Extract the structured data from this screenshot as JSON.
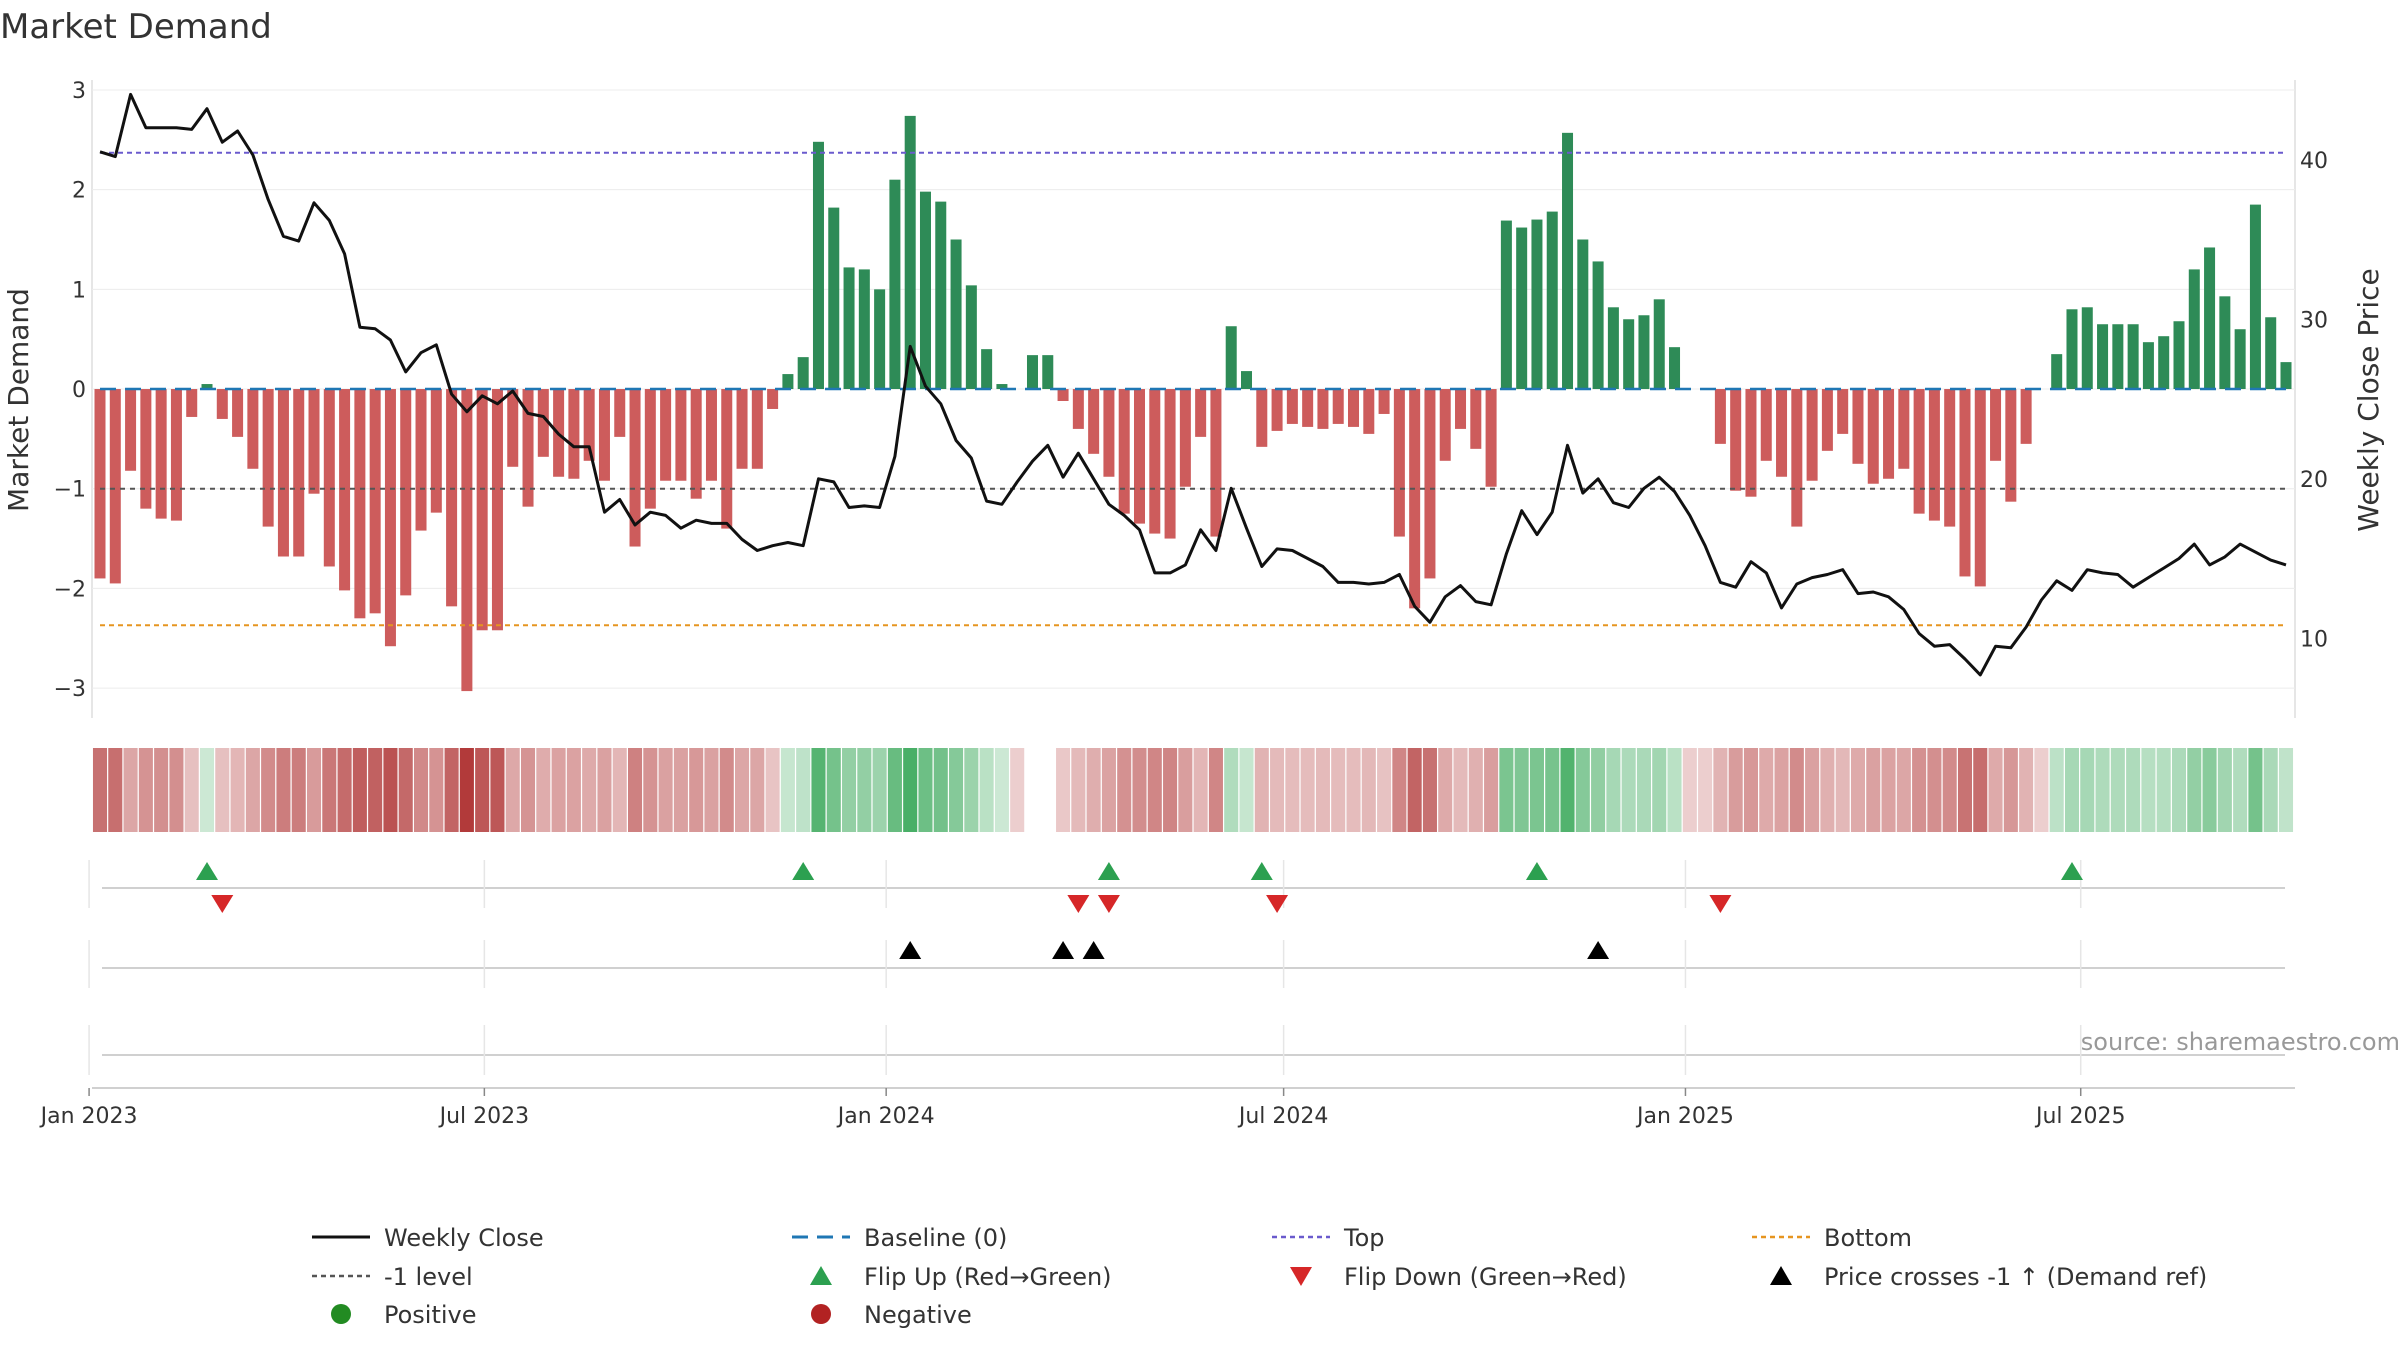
{
  "chart_data": {
    "type": "bar+line",
    "title": "Market Demand",
    "ylabel_left": "Market Demand",
    "ylabel_right": "Weekly Close Price",
    "ylim_left": [
      -3.3,
      3.1
    ],
    "ylim_right": [
      5,
      45
    ],
    "left_ticks": [
      3,
      2,
      1,
      0,
      -1,
      -2,
      -3
    ],
    "left_tick_labels": [
      "3",
      "2",
      "1",
      "0",
      "−1",
      "−2",
      "−3"
    ],
    "right_ticks": [
      40,
      30,
      20,
      10
    ],
    "right_tick_labels": [
      "40",
      "30",
      "20",
      "10"
    ],
    "x_start": "2023-01-06",
    "x_tick_labels": [
      "Jan 2023",
      "Jul 2023",
      "Jan 2024",
      "Jul 2024",
      "Jan 2025",
      "Jul 2025"
    ],
    "reference_lines": {
      "top": 2.37,
      "bottom": -2.37,
      "minus_one": -1,
      "baseline": 0
    },
    "demand": [
      -1.9,
      -1.95,
      -0.82,
      -1.2,
      -1.3,
      -1.32,
      -0.28,
      0.05,
      -0.3,
      -0.48,
      -0.8,
      -1.38,
      -1.68,
      -1.68,
      -1.05,
      -1.78,
      -2.02,
      -2.3,
      -2.25,
      -2.58,
      -2.07,
      -1.42,
      -1.24,
      -2.18,
      -3.03,
      -2.42,
      -2.42,
      -0.78,
      -1.18,
      -0.68,
      -0.88,
      -0.9,
      -0.72,
      -0.92,
      -0.48,
      -1.58,
      -1.2,
      -0.92,
      -0.92,
      -1.1,
      -0.92,
      -1.4,
      -0.8,
      -0.8,
      -0.2,
      0.15,
      0.32,
      2.48,
      1.82,
      1.22,
      1.2,
      1.0,
      2.1,
      2.74,
      1.98,
      1.88,
      1.5,
      1.04,
      0.4,
      0.05,
      0.0,
      0.34,
      0.34,
      -0.12,
      -0.4,
      -0.65,
      -0.88,
      -1.25,
      -1.35,
      -1.45,
      -1.5,
      -0.98,
      -0.48,
      -1.48,
      0.63,
      0.18,
      -0.58,
      -0.42,
      -0.35,
      -0.38,
      -0.4,
      -0.35,
      -0.38,
      -0.45,
      -0.25,
      -1.48,
      -2.2,
      -1.9,
      -0.72,
      -0.4,
      -0.6,
      -0.98,
      1.69,
      1.62,
      1.7,
      1.78,
      2.57,
      1.5,
      1.28,
      0.82,
      0.7,
      0.74,
      0.9,
      0.42,
      0.0,
      0.0,
      -0.55,
      -1.02,
      -1.08,
      -0.72,
      -0.88,
      -1.38,
      -0.92,
      -0.62,
      -0.45,
      -0.75,
      -0.95,
      -0.9,
      -0.8,
      -1.25,
      -1.32,
      -1.38,
      -1.88,
      -1.98,
      -0.72,
      -1.13,
      -0.55,
      0.0,
      0.35,
      0.8,
      0.82,
      0.65,
      0.65,
      0.65,
      0.47,
      0.53,
      0.68,
      1.2,
      1.42,
      0.93,
      0.6,
      1.85,
      0.72,
      0.27
    ],
    "close_dates": [
      "2023-01-06",
      "2023-01-13",
      "2023-01-20",
      "2023-01-27",
      "2023-02-03",
      "2023-02-10",
      "2023-02-17",
      "2023-02-24",
      "2023-03-03",
      "2023-03-10",
      "2023-03-17",
      "2023-03-24",
      "2023-03-31",
      "2023-04-07",
      "2023-04-14",
      "2023-04-21",
      "2023-04-28",
      "2023-05-05",
      "2023-05-12",
      "2023-05-19",
      "2023-05-26",
      "2023-06-02",
      "2023-06-09",
      "2023-06-16",
      "2023-06-23",
      "2023-06-30",
      "2023-07-07",
      "2023-07-14",
      "2023-07-21",
      "2023-07-28",
      "2023-08-04",
      "2023-08-11",
      "2023-08-18",
      "2023-08-25",
      "2023-09-01",
      "2023-09-08",
      "2023-09-15",
      "2023-09-22",
      "2023-09-29",
      "2023-10-06",
      "2023-10-13",
      "2023-10-20",
      "2023-10-27",
      "2023-11-03",
      "2023-11-10",
      "2023-11-17",
      "2023-11-24",
      "2023-12-01",
      "2023-12-08",
      "2023-12-15",
      "2023-12-22",
      "2023-12-29",
      "2024-01-05",
      "2024-01-12",
      "2024-01-19",
      "2024-01-26",
      "2024-02-02",
      "2024-02-09",
      "2024-02-16",
      "2024-02-23",
      "2024-03-01",
      "2024-03-08",
      "2024-03-15",
      "2024-03-22",
      "2024-03-29",
      "2024-04-05",
      "2024-04-12",
      "2024-04-19",
      "2024-04-26",
      "2024-05-03",
      "2024-05-10",
      "2024-05-17",
      "2024-05-24",
      "2024-05-31",
      "2024-06-07",
      "2024-06-14",
      "2024-06-21",
      "2024-06-28",
      "2024-07-05",
      "2024-07-12",
      "2024-07-19",
      "2024-07-26",
      "2024-08-02",
      "2024-08-09",
      "2024-08-16",
      "2024-08-23",
      "2024-08-30",
      "2024-09-06",
      "2024-09-13",
      "2024-09-20",
      "2024-09-27",
      "2024-10-04",
      "2024-10-11",
      "2024-10-18",
      "2024-10-25",
      "2024-11-01",
      "2024-11-08",
      "2024-11-15",
      "2024-11-22",
      "2024-11-29",
      "2024-12-06",
      "2024-12-13",
      "2024-12-20",
      "2024-12-27",
      "2025-01-03",
      "2025-01-10",
      "2025-01-17",
      "2025-01-24",
      "2025-01-31",
      "2025-02-07",
      "2025-02-14",
      "2025-02-21",
      "2025-02-28",
      "2025-03-07",
      "2025-03-14",
      "2025-03-21",
      "2025-03-28",
      "2025-04-04",
      "2025-04-11",
      "2025-04-18",
      "2025-04-25",
      "2025-05-02",
      "2025-05-09",
      "2025-05-16",
      "2025-05-23",
      "2025-05-30",
      "2025-06-06",
      "2025-06-13",
      "2025-06-20",
      "2025-06-27",
      "2025-07-04",
      "2025-07-11",
      "2025-07-18",
      "2025-07-25",
      "2025-08-01",
      "2025-08-08",
      "2025-08-15",
      "2025-08-22",
      "2025-08-29",
      "2025-09-05",
      "2025-09-12",
      "2025-09-19",
      "2025-09-26",
      "2025-10-03"
    ],
    "close": [
      40.5,
      40.2,
      44.1,
      42.0,
      42.0,
      42.0,
      41.9,
      43.2,
      41.1,
      41.8,
      40.3,
      37.5,
      35.2,
      34.9,
      37.3,
      36.2,
      34.1,
      29.5,
      29.4,
      28.7,
      26.7,
      27.9,
      28.4,
      25.3,
      24.2,
      25.2,
      24.7,
      25.5,
      24.1,
      23.9,
      22.8,
      22.0,
      22.0,
      17.9,
      18.7,
      17.1,
      17.9,
      17.7,
      16.9,
      17.4,
      17.2,
      17.2,
      16.2,
      15.5,
      15.8,
      16.0,
      15.8,
      20.0,
      19.8,
      18.2,
      18.3,
      18.2,
      21.4,
      28.3,
      25.8,
      24.7,
      22.4,
      21.3,
      18.6,
      18.4,
      19.8,
      21.1,
      22.1,
      20.1,
      21.6,
      20.0,
      18.4,
      17.7,
      16.8,
      14.1,
      14.1,
      14.6,
      16.8,
      15.5,
      19.4,
      16.9,
      14.5,
      15.6,
      15.5,
      15.0,
      14.5,
      13.5,
      13.5,
      13.4,
      13.5,
      14.0,
      12.0,
      11.0,
      12.6,
      13.3,
      12.3,
      12.1,
      15.3,
      18.0,
      16.5,
      17.9,
      22.1,
      19.1,
      20.0,
      18.5,
      18.2,
      19.4,
      20.1,
      19.2,
      17.7,
      15.8,
      13.5,
      13.2,
      14.8,
      14.1,
      11.9,
      13.4,
      13.8,
      14.0,
      14.3,
      12.8,
      12.9,
      12.6,
      11.8,
      10.3,
      9.5,
      9.6,
      8.7,
      7.7,
      9.5,
      9.4,
      10.7,
      12.4,
      13.6,
      13.0,
      14.3,
      14.1,
      14.0,
      13.2,
      13.8,
      14.4,
      15.0,
      15.9,
      14.6,
      15.1,
      15.9,
      15.4,
      14.9,
      14.6
    ],
    "heat_gaps": [
      61,
      62
    ],
    "flip_up_weeks": [
      7,
      46,
      66,
      76,
      94,
      129
    ],
    "flip_down_weeks": [
      8,
      64,
      66,
      77,
      106
    ],
    "price_cross_weeks": [
      53,
      63,
      65,
      98
    ],
    "legend": [
      {
        "key": "close",
        "label": "Weekly Close",
        "color": "#111111"
      },
      {
        "key": "baseline",
        "label": "Baseline (0)",
        "color": "#1f77b4"
      },
      {
        "key": "top",
        "label": "Top",
        "color": "#6a5acd"
      },
      {
        "key": "bottom",
        "label": "Bottom",
        "color": "#e69520"
      },
      {
        "key": "minus1",
        "label": "-1 level",
        "color": "#555555"
      },
      {
        "key": "flipup",
        "label": "Flip Up (Red→Green)",
        "color": "#2ca050"
      },
      {
        "key": "flipdown",
        "label": "Flip Down (Green→Red)",
        "color": "#d62728"
      },
      {
        "key": "cross",
        "label": "Price crosses -1 ↑ (Demand ref)",
        "color": "#000000"
      },
      {
        "key": "positive",
        "label": "Positive",
        "color": "#228B22"
      },
      {
        "key": "negative",
        "label": "Negative",
        "color": "#b22222"
      }
    ],
    "source": "source: sharemaestro.com"
  },
  "colors": {
    "positive_bar": "#2e8b57",
    "negative_bar": "#cd5c5c",
    "heat_green": "#3aa85a",
    "heat_red": "#b23a3a"
  }
}
